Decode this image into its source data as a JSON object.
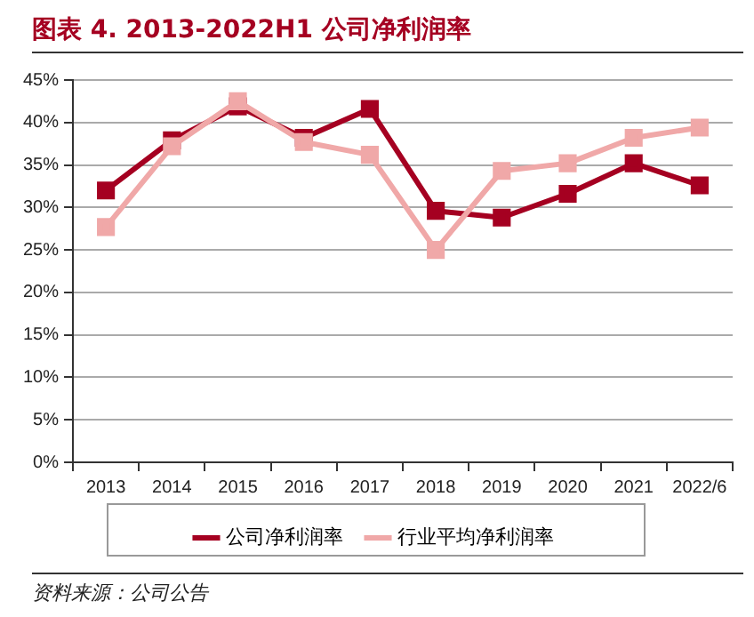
{
  "chart_data": {
    "type": "line",
    "title": "图表 4. 2013-2022H1 公司净利润率",
    "categories": [
      "2013",
      "2014",
      "2015",
      "2016",
      "2017",
      "2018",
      "2019",
      "2020",
      "2021",
      "2022/6"
    ],
    "series": [
      {
        "name": "公司净利润率",
        "color": "#a50021",
        "values": [
          32.0,
          37.9,
          41.9,
          38.2,
          41.6,
          29.6,
          28.8,
          31.6,
          35.2,
          32.6
        ]
      },
      {
        "name": "行业平均净利润率",
        "color": "#f0a8a8",
        "values": [
          27.7,
          37.2,
          42.5,
          37.7,
          36.2,
          25.0,
          34.3,
          35.2,
          38.2,
          39.4
        ]
      }
    ],
    "ylim": [
      0,
      45
    ],
    "yticks": [
      {
        "value": 0,
        "label": "0%"
      },
      {
        "value": 5,
        "label": "5%"
      },
      {
        "value": 10,
        "label": "10%"
      },
      {
        "value": 15,
        "label": "15%"
      },
      {
        "value": 20,
        "label": "20%"
      },
      {
        "value": 25,
        "label": "25%"
      },
      {
        "value": 30,
        "label": "30%"
      },
      {
        "value": 35,
        "label": "35%"
      },
      {
        "value": 40,
        "label": "40%"
      },
      {
        "value": 45,
        "label": "45%"
      }
    ],
    "grid": "y",
    "legend": "bottom",
    "marker": "square",
    "line_style": "solid",
    "annotations": [
      "资料来源：公司公告"
    ]
  }
}
